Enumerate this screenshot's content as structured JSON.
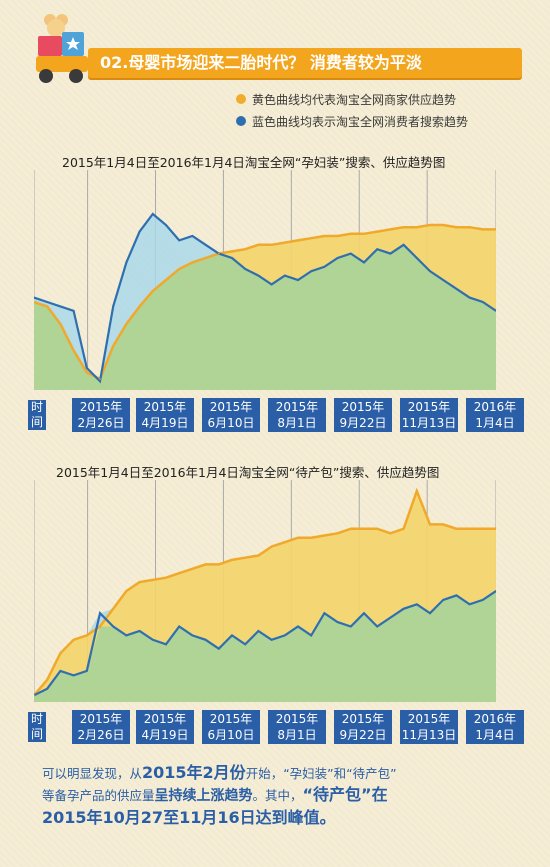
{
  "header": {
    "title": "02.母婴市场迎来二胎时代？ 消费者较为平淡"
  },
  "legend": [
    {
      "label": "黄色曲线均代表淘宝全网商家供应趋势",
      "color": "#f0ad2b"
    },
    {
      "label": "蓝色曲线均表示淘宝全网消费者搜索趋势",
      "color": "#2f6fb0"
    }
  ],
  "colors": {
    "supply_fill": "#f4d46a",
    "supply_line": "#f0a92a",
    "search_line": "#2f6fb0",
    "search_fill_under": "#a8d39a",
    "search_fill_above": "#a9d8ea",
    "tick_bg": "#2a5ea6",
    "title_bar": "#f3a51d"
  },
  "axis": {
    "time_label": "时间",
    "ticks": [
      {
        "year": "2015年",
        "date": "2月26日"
      },
      {
        "year": "2015年",
        "date": "4月19日"
      },
      {
        "year": "2015年",
        "date": "6月10日"
      },
      {
        "year": "2015年",
        "date": "8月1日"
      },
      {
        "year": "2015年",
        "date": "9月22日"
      },
      {
        "year": "2015年",
        "date": "11月13日"
      },
      {
        "year": "2016年",
        "date": "1月4日"
      }
    ]
  },
  "chart_data": [
    {
      "type": "area",
      "title": "2015年1月4日至2016年1月4日淘宝全网“孕妇装”搜索、供应趋势图",
      "x_start": "2015-01-04",
      "x_end": "2016-01-04",
      "ylim": [
        0,
        100
      ],
      "series": [
        {
          "values": [
            40,
            38,
            30,
            18,
            8,
            5,
            20,
            30,
            38,
            45,
            50,
            55,
            58,
            60,
            62,
            63,
            64,
            66,
            66,
            67,
            68,
            69,
            70,
            70,
            71,
            71,
            72,
            73,
            74,
            74,
            75,
            75,
            74,
            74,
            73,
            73
          ]
        },
        {
          "values": [
            42,
            40,
            38,
            36,
            10,
            4,
            38,
            58,
            72,
            80,
            75,
            68,
            70,
            66,
            62,
            60,
            55,
            52,
            48,
            52,
            50,
            54,
            56,
            60,
            62,
            58,
            64,
            62,
            66,
            60,
            54,
            50,
            46,
            42,
            40,
            36
          ]
        }
      ]
    },
    {
      "type": "area",
      "title": "2015年1月4日至2016年1月4日淘宝全网“待产包”搜索、供应趋势图",
      "x_start": "2015-01-04",
      "x_end": "2016-01-04",
      "ylim": [
        0,
        100
      ],
      "series": [
        {
          "values": [
            3,
            10,
            22,
            28,
            30,
            34,
            42,
            50,
            54,
            55,
            56,
            58,
            60,
            62,
            62,
            64,
            65,
            66,
            70,
            72,
            74,
            74,
            75,
            76,
            78,
            78,
            78,
            76,
            78,
            95,
            80,
            80,
            78,
            78,
            78,
            78
          ]
        },
        {
          "values": [
            3,
            6,
            14,
            12,
            14,
            40,
            34,
            30,
            32,
            28,
            26,
            34,
            30,
            28,
            24,
            30,
            26,
            32,
            28,
            30,
            34,
            30,
            40,
            36,
            34,
            40,
            34,
            38,
            42,
            44,
            40,
            46,
            48,
            44,
            46,
            50
          ]
        }
      ]
    }
  ],
  "conclusion": {
    "p1": "可以明显发现，从",
    "p2": "2015年2月份",
    "p3": "开始，“孕妇装”和“待产包”",
    "p4": "等备孕产品的供应量",
    "p5": "呈持续上涨趋势",
    "p6": "。其中，",
    "p7": "“待产包”在",
    "p8": "2015年10月27至11月16日达到峰值。"
  }
}
